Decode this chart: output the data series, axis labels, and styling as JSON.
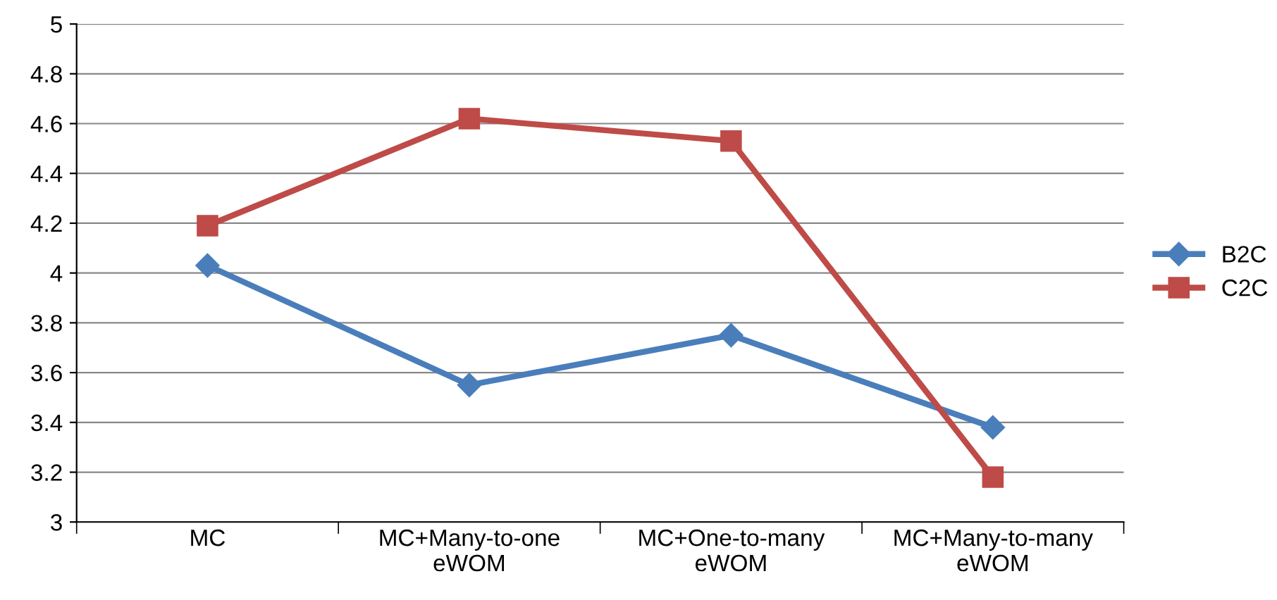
{
  "chart_data": {
    "type": "line",
    "categories": [
      "MC",
      "MC+Many-to-one\neWOM",
      "MC+One-to-many\neWOM",
      "MC+Many-to-many\neWOM"
    ],
    "series": [
      {
        "name": "B2C",
        "color": "#4a7ebb",
        "marker": "diamond",
        "values": [
          4.03,
          3.55,
          3.75,
          3.38
        ]
      },
      {
        "name": "C2C",
        "color": "#be4b48",
        "marker": "square",
        "values": [
          4.19,
          4.62,
          4.53,
          3.18
        ]
      }
    ],
    "ylim": [
      3,
      5
    ],
    "yticks": [
      3,
      3.2,
      3.4,
      3.6,
      3.8,
      4,
      4.2,
      4.4,
      4.6,
      4.8,
      5
    ],
    "grid": "y",
    "legend": "right",
    "line_style": "solid"
  }
}
